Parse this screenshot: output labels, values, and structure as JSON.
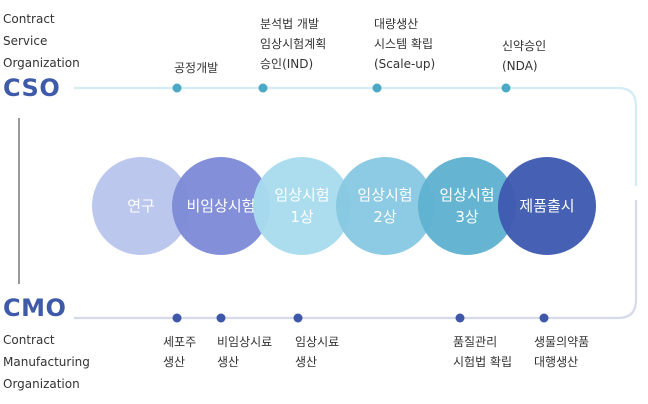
{
  "cso": {
    "desc": [
      "Contract",
      "Service",
      "Organization"
    ],
    "abbr": "CSO"
  },
  "cmo": {
    "desc": [
      "Contract",
      "Manufacturing",
      "Organization"
    ],
    "abbr": "CMO"
  },
  "top_labels": [
    [
      "공정개발"
    ],
    [
      "분석법 개발",
      "임상시험계획",
      "승인(IND)"
    ],
    [
      "대량생산",
      "시스템 확립",
      "(Scale-up)"
    ],
    [
      "신약승인",
      "(NDA)"
    ]
  ],
  "bottom_labels": [
    [
      "세포주",
      "생산"
    ],
    [
      "비임상시료",
      "생산"
    ],
    [
      "임상시료",
      "생산"
    ],
    [
      "품질관리",
      "시험법 확립"
    ],
    [
      "생물의약품",
      "대행생산"
    ]
  ],
  "stages": [
    [
      "연구"
    ],
    [
      "비임상시험"
    ],
    [
      "임상시험",
      "1상"
    ],
    [
      "임상시험",
      "2상"
    ],
    [
      "임상시험",
      "3상"
    ],
    [
      "제품출시"
    ]
  ],
  "colors": {
    "brand": "#3f5aa8",
    "top_line": "#d4ecf4",
    "top_dot": "#4aa9c6",
    "bottom_line": "#d5dbeb",
    "bottom_dot": "#3e57a8",
    "stage_research": "#bcc7ee",
    "stage_preclinical": "#7e8cd8",
    "stage_phase1": "#a9dcef",
    "stage_phase2": "#88c9e2",
    "stage_phase3": "#5fb3d1",
    "stage_launch": "#3f5ab1"
  }
}
